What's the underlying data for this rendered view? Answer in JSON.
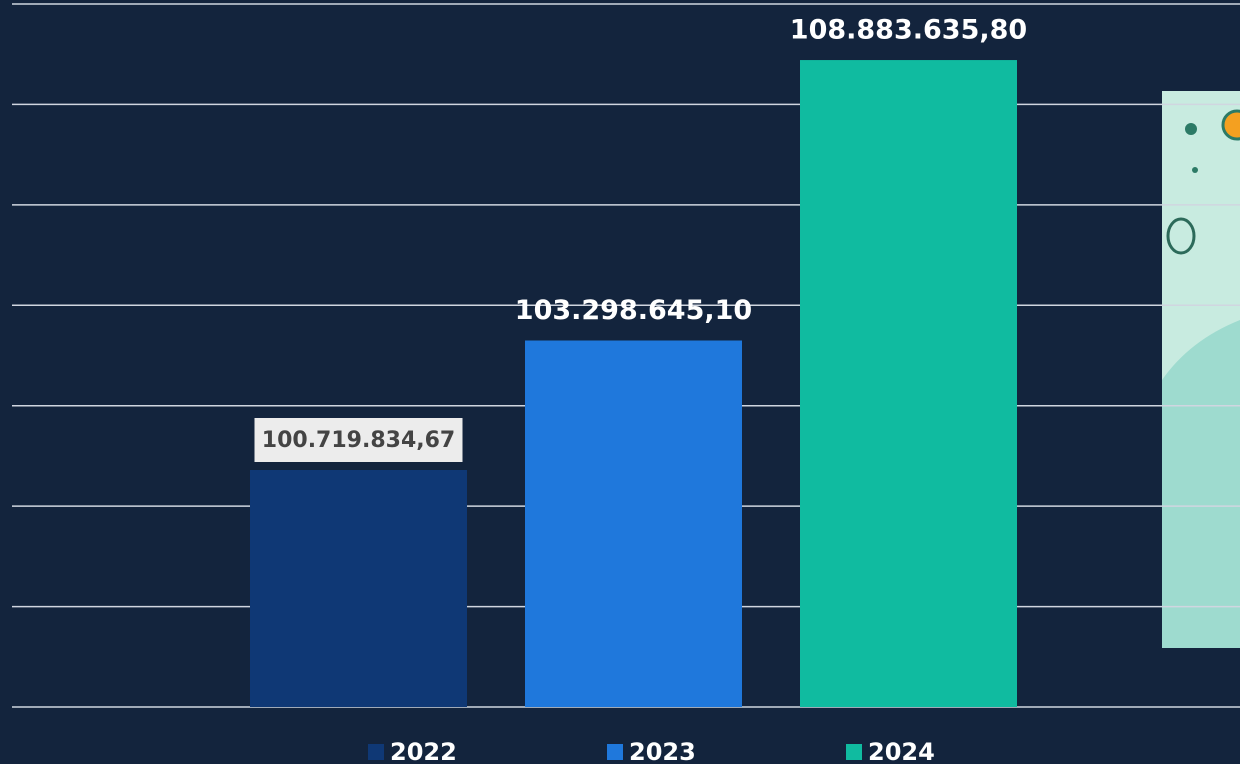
{
  "chart_data": {
    "type": "bar",
    "categories": [
      "2022",
      "2023",
      "2024"
    ],
    "values": [
      100719834.67,
      103298645.1,
      108883635.8
    ],
    "value_labels": [
      "100.719.834,67",
      "103.298.645,10",
      "108.883.635,80"
    ],
    "colors": [
      "#0f3875",
      "#1f78dc",
      "#10bba0"
    ],
    "ylim": [
      96000000,
      110000000
    ],
    "yticks": [
      96000000,
      98000000,
      100000000,
      102000000,
      104000000,
      106000000,
      108000000,
      110000000
    ],
    "grid": true
  }
}
